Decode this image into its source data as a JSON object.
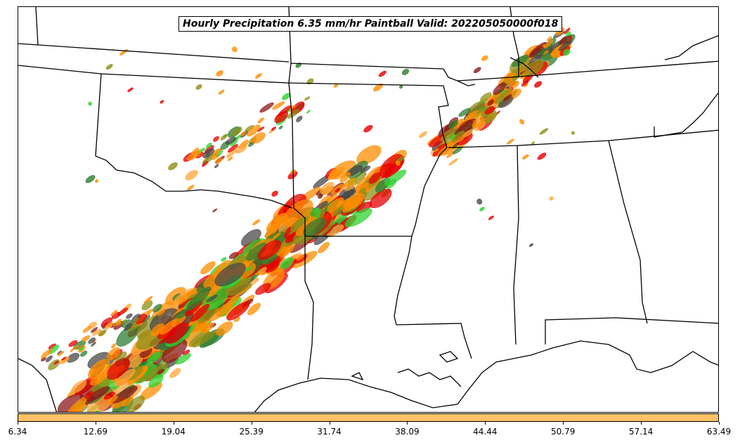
{
  "title": "Hourly Precipitation 6.35 mm/hr Paintball Valid: 202205050000f018",
  "colorbar": {
    "color": "#ffc266",
    "ticks": [
      "6.34",
      "12.69",
      "19.04",
      "25.39",
      "31.74",
      "38.09",
      "44.44",
      "50.79",
      "57.14",
      "63.49"
    ]
  },
  "palette": {
    "orange": "#ff8c00",
    "light_orange": "#ffa53a",
    "red": "#e60000",
    "dark_red": "#8b1a1a",
    "olive": "#8f8f1a",
    "green": "#2fd12f",
    "dark_green": "#2e7d32",
    "dark_gray": "#4a4a4a"
  }
}
